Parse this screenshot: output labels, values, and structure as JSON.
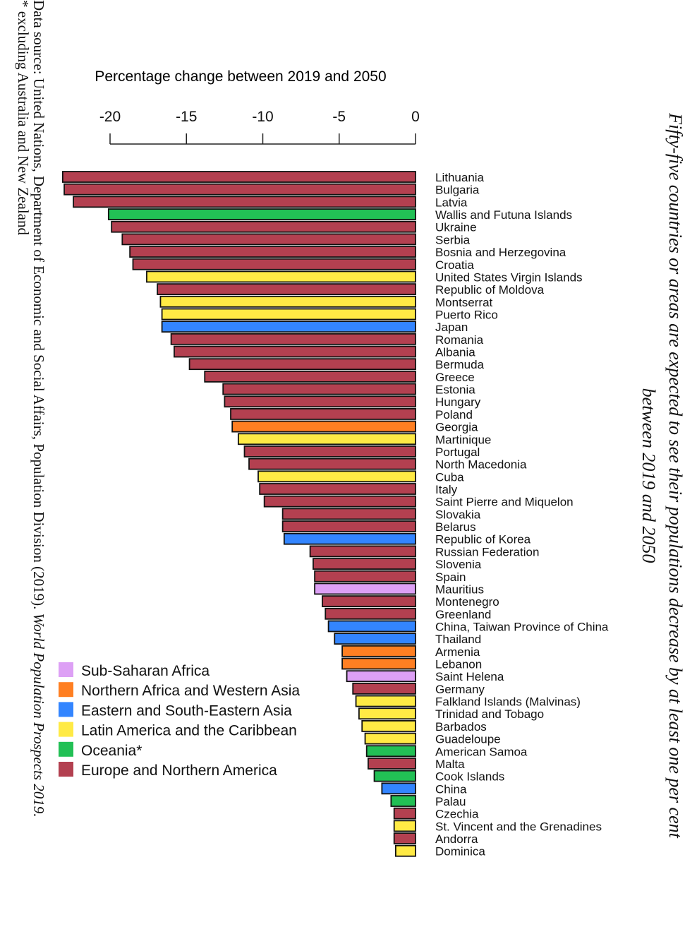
{
  "title": {
    "line1": "Fifty-five countries or areas are expected to see their populations decrease by at least one per cent",
    "line2": "between 2019 and 2050"
  },
  "source": {
    "prefix": "Data source: United Nations, Department of Economic and Social Affairs, Population Division (2019). ",
    "publication": "World Population Prospects 2019.",
    "footnote": "* excluding Australia and New Zealand"
  },
  "colors": {
    "Sub-Saharan Africa": "#DDA0F5",
    "Northern Africa and Western Asia": "#FF7F22",
    "Eastern and South-Eastern Asia": "#3385FF",
    "Latin America and the Caribbean": "#FFEA45",
    "Oceania*": "#22C055",
    "Europe and Northern America": "#B34050"
  },
  "chart_data": {
    "type": "bar",
    "orientation": "horizontal",
    "title": "Fifty-five countries or areas are expected to see their populations decrease by at least one per cent between 2019 and 2050",
    "xlabel": "Percentage change between 2019 and 2050",
    "ylabel": "",
    "xlim": [
      -20,
      0
    ],
    "xticks": [
      -20,
      -15,
      -10,
      -5,
      0
    ],
    "xtick_labels": [
      "-20",
      "-15",
      "-10",
      "-5",
      "0"
    ],
    "axis_position": "top",
    "grid": false,
    "legend_position": "bottom-left",
    "legend": [
      "Sub-Saharan Africa",
      "Northern Africa and Western Asia",
      "Eastern and South-Eastern Asia",
      "Latin America and the Caribbean",
      "Oceania*",
      "Europe and Northern America"
    ],
    "categories": [
      "Lithuania",
      "Bulgaria",
      "Latvia",
      "Wallis and Futuna Islands",
      "Ukraine",
      "Serbia",
      "Bosnia and Herzegovina",
      "Croatia",
      "United States Virgin Islands",
      "Republic of Moldova",
      "Montserrat",
      "Puerto Rico",
      "Japan",
      "Romania",
      "Albania",
      "Bermuda",
      "Greece",
      "Estonia",
      "Hungary",
      "Poland",
      "Georgia",
      "Martinique",
      "Portugal",
      "North Macedonia",
      "Cuba",
      "Italy",
      "Saint Pierre and Miquelon",
      "Slovakia",
      "Belarus",
      "Republic of Korea",
      "Russian Federation",
      "Slovenia",
      "Spain",
      "Mauritius",
      "Montenegro",
      "Greenland",
      "China, Taiwan Province of China",
      "Thailand",
      "Armenia",
      "Lebanon",
      "Saint Helena",
      "Germany",
      "Falkland Islands (Malvinas)",
      "Trinidad and Tobago",
      "Barbados",
      "Guadeloupe",
      "American Samoa",
      "Malta",
      "Cook Islands",
      "China",
      "Palau",
      "Czechia",
      "St. Vincent and the Grenadines",
      "Andorra",
      "Dominica"
    ],
    "values": [
      -23.1,
      -23.0,
      -22.4,
      -20.1,
      -19.9,
      -19.2,
      -18.7,
      -18.5,
      -17.6,
      -16.9,
      -16.7,
      -16.6,
      -16.6,
      -16.0,
      -15.8,
      -14.8,
      -13.8,
      -12.6,
      -12.5,
      -12.1,
      -12.0,
      -11.6,
      -11.2,
      -10.9,
      -10.3,
      -10.2,
      -9.9,
      -8.7,
      -8.7,
      -8.6,
      -6.9,
      -6.7,
      -6.6,
      -6.6,
      -6.1,
      -5.9,
      -5.7,
      -5.3,
      -4.8,
      -4.8,
      -4.5,
      -4.1,
      -3.9,
      -3.7,
      -3.5,
      -3.3,
      -3.2,
      -3.1,
      -2.7,
      -2.2,
      -1.6,
      -1.4,
      -1.4,
      -1.4,
      -1.3
    ],
    "regions": [
      "Europe and Northern America",
      "Europe and Northern America",
      "Europe and Northern America",
      "Oceania*",
      "Europe and Northern America",
      "Europe and Northern America",
      "Europe and Northern America",
      "Europe and Northern America",
      "Latin America and the Caribbean",
      "Europe and Northern America",
      "Latin America and the Caribbean",
      "Latin America and the Caribbean",
      "Eastern and South-Eastern Asia",
      "Europe and Northern America",
      "Europe and Northern America",
      "Europe and Northern America",
      "Europe and Northern America",
      "Europe and Northern America",
      "Europe and Northern America",
      "Europe and Northern America",
      "Northern Africa and Western Asia",
      "Latin America and the Caribbean",
      "Europe and Northern America",
      "Europe and Northern America",
      "Latin America and the Caribbean",
      "Europe and Northern America",
      "Europe and Northern America",
      "Europe and Northern America",
      "Europe and Northern America",
      "Eastern and South-Eastern Asia",
      "Europe and Northern America",
      "Europe and Northern America",
      "Europe and Northern America",
      "Sub-Saharan Africa",
      "Europe and Northern America",
      "Europe and Northern America",
      "Eastern and South-Eastern Asia",
      "Eastern and South-Eastern Asia",
      "Northern Africa and Western Asia",
      "Northern Africa and Western Asia",
      "Sub-Saharan Africa",
      "Europe and Northern America",
      "Latin America and the Caribbean",
      "Latin America and the Caribbean",
      "Latin America and the Caribbean",
      "Latin America and the Caribbean",
      "Oceania*",
      "Europe and Northern America",
      "Oceania*",
      "Eastern and South-Eastern Asia",
      "Oceania*",
      "Europe and Northern America",
      "Latin America and the Caribbean",
      "Europe and Northern America",
      "Latin America and the Caribbean"
    ]
  }
}
